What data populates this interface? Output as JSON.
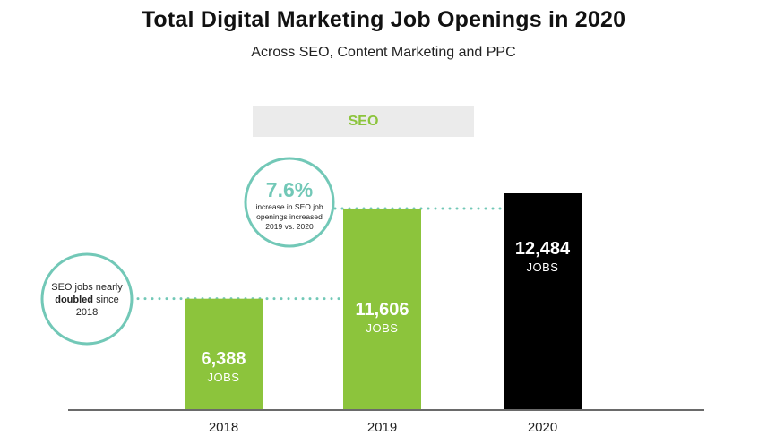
{
  "colors": {
    "green": "#8cc43c",
    "black": "#000000",
    "teal": "#72c8b7",
    "label_bg": "#ebebeb"
  },
  "header": {
    "title": "Total Digital Marketing Job Openings in 2020",
    "subtitle": "Across SEO, Content Marketing and PPC"
  },
  "section": {
    "label": "SEO"
  },
  "chart_data": {
    "type": "bar",
    "title": "Total Digital Marketing Job Openings in 2020",
    "subtitle": "Across SEO, Content Marketing and PPC",
    "categories": [
      "2018",
      "2019",
      "2020"
    ],
    "values": [
      6388,
      11606,
      12484
    ],
    "value_labels": [
      "6,388",
      "11,606",
      "12,484"
    ],
    "unit_label": "JOBS",
    "bar_colors": [
      "#8cc43c",
      "#8cc43c",
      "#000000"
    ],
    "ylim": [
      0,
      12484
    ],
    "grid": false,
    "annotations": [
      {
        "lines": [
          "SEO jobs nearly",
          "doubled since",
          "2018"
        ],
        "bold_word": "doubled",
        "target_value": 6388
      },
      {
        "headline": "7.6%",
        "lines": [
          "increase in SEO job",
          "openings increased",
          "2019 vs. 2020"
        ],
        "target_value": 11606
      }
    ]
  }
}
